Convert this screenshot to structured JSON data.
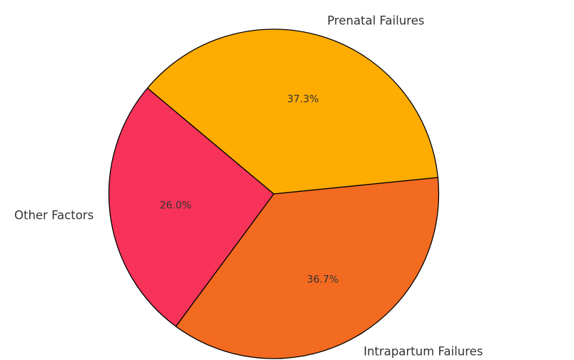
{
  "chart_data": {
    "type": "pie",
    "title": "",
    "slices": [
      {
        "label": "Other Factors",
        "value": 26.0,
        "pct_text": "26.0%",
        "color": "#f73359"
      },
      {
        "label": "Intrapartum Failures",
        "value": 36.7,
        "pct_text": "36.7%",
        "color": "#f36b21"
      },
      {
        "label": "Prenatal Failures",
        "value": 37.3,
        "pct_text": "37.3%",
        "color": "#feac00"
      }
    ],
    "start_angle_deg": 140,
    "direction": "counterclockwise",
    "edge_color": "#000000",
    "legend": "none"
  }
}
